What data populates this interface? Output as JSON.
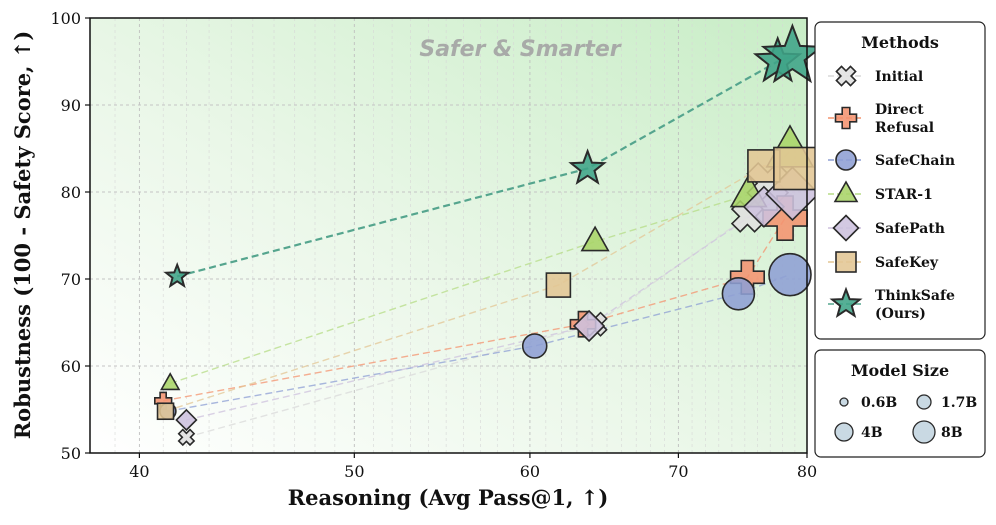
{
  "chart_data": {
    "type": "scatter",
    "title": "",
    "xlabel": "Reasoning (Avg Pass@1, ↑)",
    "ylabel": "Robustness (100 - Safety Score, ↑)",
    "xlim": [
      38,
      80
    ],
    "ylim": [
      50,
      100
    ],
    "x_scale": "log",
    "xticks": [
      40,
      50,
      60,
      70,
      80
    ],
    "yticks": [
      50,
      60,
      70,
      80,
      90,
      100
    ],
    "grid": true,
    "annotation": "Safer & Smarter",
    "legend_title": "Methods",
    "legend_position": "right",
    "size_legend_title": "Model Size",
    "model_sizes": [
      "0.6B",
      "1.7B",
      "4B",
      "8B"
    ],
    "series": [
      {
        "name": "Initial",
        "label_lines": [
          "Initial"
        ],
        "marker": "x",
        "color": "#e0e0e0",
        "line_color": "#d9d9d9",
        "points": [
          {
            "x": 42.0,
            "y": 51.8,
            "size": "0.6B"
          },
          {
            "x": 64.2,
            "y": 64.8,
            "size": "1.7B"
          },
          {
            "x": 75.2,
            "y": 77.2,
            "size": "4B"
          },
          {
            "x": 76.8,
            "y": 81.0,
            "size": "8B"
          }
        ]
      },
      {
        "name": "Direct Refusal",
        "label_lines": [
          "Direct",
          "Refusal"
        ],
        "marker": "plus",
        "color": "#f4936f",
        "line_color": "#f4936f",
        "points": [
          {
            "x": 41.0,
            "y": 56.0,
            "size": "0.6B"
          },
          {
            "x": 63.4,
            "y": 64.8,
            "size": "1.7B"
          },
          {
            "x": 75.2,
            "y": 70.2,
            "size": "4B"
          },
          {
            "x": 78.2,
            "y": 77.0,
            "size": "8B"
          }
        ]
      },
      {
        "name": "SafeChain",
        "label_lines": [
          "SafeChain"
        ],
        "marker": "circle",
        "color": "#8e9fd4",
        "line_color": "#8e9fd4",
        "points": [
          {
            "x": 41.2,
            "y": 54.8,
            "size": "0.6B"
          },
          {
            "x": 60.3,
            "y": 62.3,
            "size": "1.7B"
          },
          {
            "x": 74.5,
            "y": 68.3,
            "size": "4B"
          },
          {
            "x": 78.6,
            "y": 70.5,
            "size": "8B"
          }
        ]
      },
      {
        "name": "STAR-1",
        "label_lines": [
          "STAR-1"
        ],
        "marker": "triangle",
        "color": "#a8d468",
        "line_color": "#b6dc86",
        "points": [
          {
            "x": 41.3,
            "y": 58.0,
            "size": "0.6B"
          },
          {
            "x": 64.2,
            "y": 74.3,
            "size": "1.7B"
          },
          {
            "x": 75.3,
            "y": 79.7,
            "size": "4B"
          },
          {
            "x": 78.6,
            "y": 84.7,
            "size": "8B"
          }
        ]
      },
      {
        "name": "SafePath",
        "label_lines": [
          "SafePath"
        ],
        "marker": "diamond",
        "color": "#cdc1de",
        "line_color": "#cdc1de",
        "points": [
          {
            "x": 42.0,
            "y": 53.8,
            "size": "0.6B"
          },
          {
            "x": 63.8,
            "y": 64.6,
            "size": "1.7B"
          },
          {
            "x": 76.5,
            "y": 78.3,
            "size": "4B"
          },
          {
            "x": 78.8,
            "y": 79.8,
            "size": "8B"
          }
        ]
      },
      {
        "name": "SafeKey",
        "label_lines": [
          "SafeKey"
        ],
        "marker": "square",
        "color": "#e3c694",
        "line_color": "#e3c694",
        "points": [
          {
            "x": 41.1,
            "y": 54.8,
            "size": "0.6B"
          },
          {
            "x": 61.8,
            "y": 69.3,
            "size": "1.7B"
          },
          {
            "x": 76.5,
            "y": 83.0,
            "size": "4B"
          },
          {
            "x": 79.0,
            "y": 82.7,
            "size": "8B"
          }
        ]
      },
      {
        "name": "ThinkSafe (Ours)",
        "label_lines": [
          "ThinkSafe",
          "(Ours)"
        ],
        "marker": "star",
        "color": "#3fa488",
        "line_color": "#55a58e",
        "points": [
          {
            "x": 41.6,
            "y": 70.3,
            "size": "0.6B"
          },
          {
            "x": 63.7,
            "y": 82.7,
            "size": "1.7B"
          },
          {
            "x": 77.6,
            "y": 95.0,
            "size": "4B"
          },
          {
            "x": 78.8,
            "y": 95.6,
            "size": "8B"
          }
        ]
      }
    ]
  }
}
